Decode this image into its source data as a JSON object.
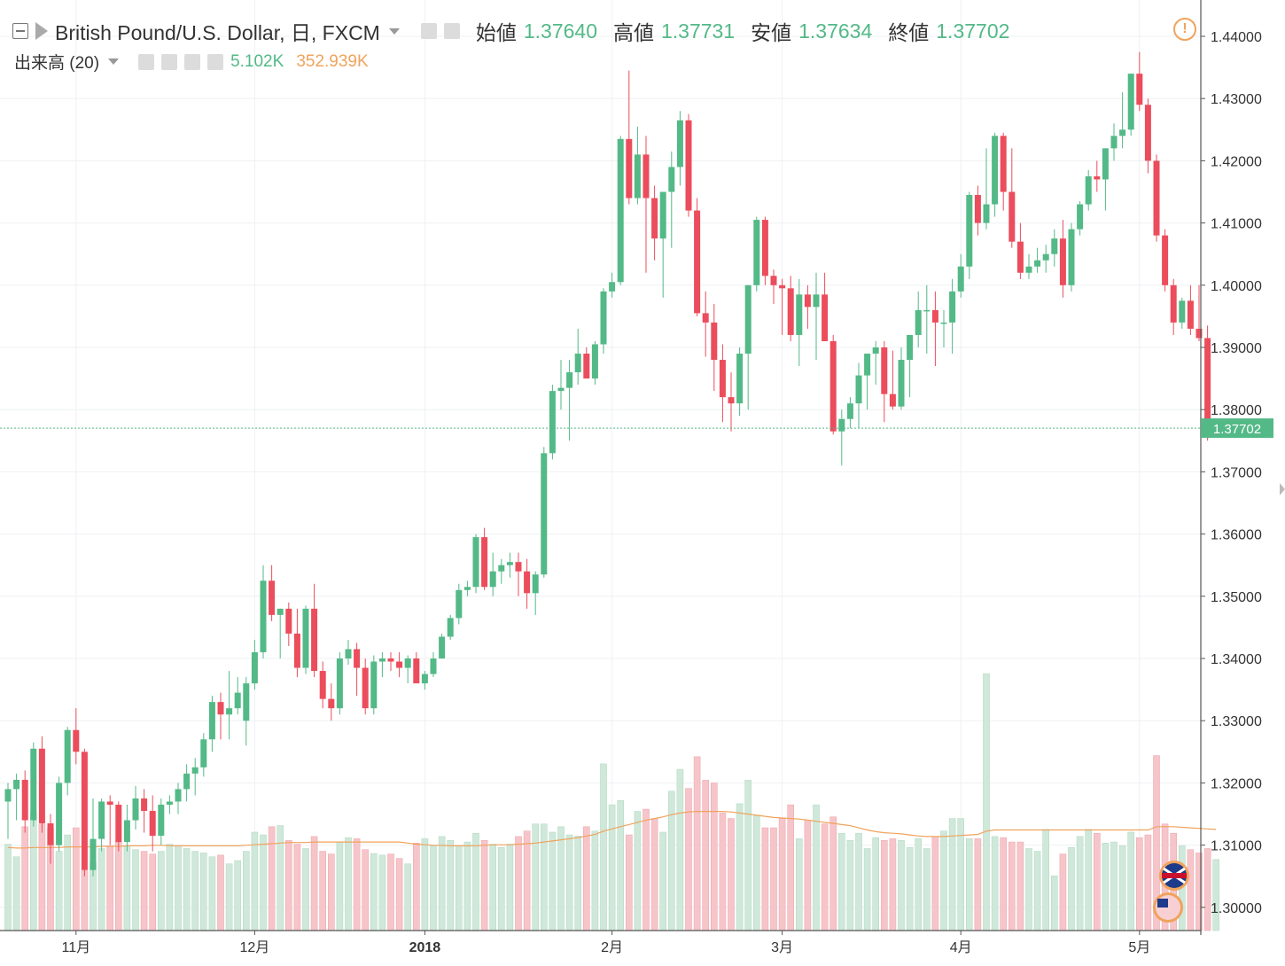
{
  "header": {
    "symbol": "British Pound/U.S. Dollar, 日, FXCM",
    "open_label": "始値",
    "open": "1.37640",
    "high_label": "高値",
    "high": "1.37731",
    "low_label": "安値",
    "low": "1.37634",
    "close_label": "終値",
    "close": "1.37702",
    "volume_label": "出来高 (20)",
    "volume_value": "5.102K",
    "volume_ma": "352.939K"
  },
  "last_price_label": "1.37702",
  "colors": {
    "up": "#53b987",
    "down": "#eb4d5c",
    "vol_up": "#cfe8da",
    "vol_down": "#f6c5ca",
    "ma": "#f0a35c"
  },
  "chart_data": {
    "type": "candlestick",
    "y_axis": {
      "ticks": [
        "1.30000",
        "1.31000",
        "1.32000",
        "1.33000",
        "1.34000",
        "1.35000",
        "1.36000",
        "1.37000",
        "1.38000",
        "1.39000",
        "1.40000",
        "1.41000",
        "1.42000",
        "1.43000",
        "1.44000"
      ],
      "range": [
        1.2975,
        1.445
      ]
    },
    "x_axis": {
      "labels": [
        "11月",
        "12月",
        "2018",
        "2月",
        "3月",
        "4月",
        "5月"
      ],
      "label_index": [
        8,
        29,
        49,
        71,
        91,
        112,
        133
      ]
    },
    "last_price": 1.37702,
    "candles": [
      [
        1.317,
        1.32,
        1.311,
        1.319
      ],
      [
        1.319,
        1.3215,
        1.314,
        1.3205
      ],
      [
        1.3205,
        1.322,
        1.312,
        1.314
      ],
      [
        1.314,
        1.3265,
        1.313,
        1.3255
      ],
      [
        1.3255,
        1.3275,
        1.312,
        1.3135
      ],
      [
        1.3135,
        1.315,
        1.307,
        1.31
      ],
      [
        1.31,
        1.321,
        1.309,
        1.32
      ],
      [
        1.32,
        1.329,
        1.318,
        1.3285
      ],
      [
        1.3285,
        1.332,
        1.323,
        1.325
      ],
      [
        1.325,
        1.3255,
        1.305,
        1.306
      ],
      [
        1.306,
        1.3175,
        1.305,
        1.311
      ],
      [
        1.311,
        1.3175,
        1.309,
        1.317
      ],
      [
        1.317,
        1.318,
        1.31,
        1.3165
      ],
      [
        1.3165,
        1.317,
        1.309,
        1.3105
      ],
      [
        1.3105,
        1.3165,
        1.309,
        1.314
      ],
      [
        1.314,
        1.3195,
        1.3125,
        1.3175
      ],
      [
        1.3175,
        1.319,
        1.312,
        1.3155
      ],
      [
        1.3155,
        1.318,
        1.309,
        1.3115
      ],
      [
        1.3115,
        1.3175,
        1.31,
        1.3165
      ],
      [
        1.3165,
        1.318,
        1.315,
        1.317
      ],
      [
        1.317,
        1.32,
        1.315,
        1.319
      ],
      [
        1.319,
        1.323,
        1.317,
        1.3215
      ],
      [
        1.3215,
        1.324,
        1.318,
        1.3225
      ],
      [
        1.3225,
        1.328,
        1.321,
        1.327
      ],
      [
        1.327,
        1.334,
        1.325,
        1.333
      ],
      [
        1.333,
        1.3345,
        1.327,
        1.331
      ],
      [
        1.331,
        1.338,
        1.327,
        1.332
      ],
      [
        1.332,
        1.337,
        1.331,
        1.3345
      ],
      [
        1.33,
        1.337,
        1.326,
        1.336
      ],
      [
        1.336,
        1.343,
        1.335,
        1.341
      ],
      [
        1.341,
        1.355,
        1.34,
        1.3525
      ],
      [
        1.3525,
        1.355,
        1.346,
        1.347
      ],
      [
        1.347,
        1.348,
        1.34,
        1.348
      ],
      [
        1.348,
        1.349,
        1.342,
        1.344
      ],
      [
        1.344,
        1.348,
        1.337,
        1.3385
      ],
      [
        1.3385,
        1.3485,
        1.3375,
        1.348
      ],
      [
        1.348,
        1.352,
        1.337,
        1.338
      ],
      [
        1.338,
        1.3395,
        1.332,
        1.3335
      ],
      [
        1.3335,
        1.336,
        1.33,
        1.332
      ],
      [
        1.332,
        1.341,
        1.331,
        1.34
      ],
      [
        1.34,
        1.343,
        1.339,
        1.3415
      ],
      [
        1.3415,
        1.3425,
        1.334,
        1.3385
      ],
      [
        1.3385,
        1.34,
        1.331,
        1.332
      ],
      [
        1.332,
        1.3405,
        1.331,
        1.3395
      ],
      [
        1.3395,
        1.341,
        1.337,
        1.34
      ],
      [
        1.34,
        1.341,
        1.338,
        1.3395
      ],
      [
        1.3395,
        1.341,
        1.337,
        1.3385
      ],
      [
        1.3385,
        1.3405,
        1.336,
        1.34
      ],
      [
        1.34,
        1.341,
        1.337,
        1.336
      ],
      [
        1.336,
        1.338,
        1.335,
        1.3375
      ],
      [
        1.3375,
        1.341,
        1.337,
        1.34
      ],
      [
        1.34,
        1.344,
        1.34,
        1.3435
      ],
      [
        1.3435,
        1.347,
        1.343,
        1.3465
      ],
      [
        1.3465,
        1.352,
        1.3455,
        1.351
      ],
      [
        1.351,
        1.3525,
        1.35,
        1.3515
      ],
      [
        1.3515,
        1.36,
        1.3505,
        1.3595
      ],
      [
        1.3595,
        1.361,
        1.351,
        1.3515
      ],
      [
        1.3515,
        1.357,
        1.35,
        1.354
      ],
      [
        1.354,
        1.356,
        1.352,
        1.355
      ],
      [
        1.355,
        1.357,
        1.353,
        1.3555
      ],
      [
        1.3555,
        1.357,
        1.35,
        1.354
      ],
      [
        1.354,
        1.356,
        1.348,
        1.3505
      ],
      [
        1.3505,
        1.354,
        1.347,
        1.3535
      ],
      [
        1.3535,
        1.374,
        1.353,
        1.373
      ],
      [
        1.373,
        1.384,
        1.372,
        1.383
      ],
      [
        1.383,
        1.388,
        1.38,
        1.3835
      ],
      [
        1.3835,
        1.388,
        1.375,
        1.386
      ],
      [
        1.386,
        1.393,
        1.384,
        1.389
      ],
      [
        1.389,
        1.39,
        1.385,
        1.385
      ],
      [
        1.385,
        1.391,
        1.384,
        1.3905
      ],
      [
        1.3905,
        1.3995,
        1.389,
        1.399
      ],
      [
        1.399,
        1.402,
        1.398,
        1.4005
      ],
      [
        1.4005,
        1.424,
        1.4,
        1.4235
      ],
      [
        1.4235,
        1.4345,
        1.413,
        1.414
      ],
      [
        1.414,
        1.4255,
        1.413,
        1.421
      ],
      [
        1.421,
        1.424,
        1.402,
        1.414
      ],
      [
        1.414,
        1.416,
        1.404,
        1.4075
      ],
      [
        1.4075,
        1.415,
        1.398,
        1.415
      ],
      [
        1.415,
        1.4215,
        1.406,
        1.419
      ],
      [
        1.419,
        1.428,
        1.416,
        1.4265
      ],
      [
        1.4265,
        1.4275,
        1.411,
        1.412
      ],
      [
        1.412,
        1.414,
        1.395,
        1.3955
      ],
      [
        1.3955,
        1.399,
        1.3885,
        1.394
      ],
      [
        1.394,
        1.397,
        1.383,
        1.388
      ],
      [
        1.388,
        1.3905,
        1.378,
        1.382
      ],
      [
        1.382,
        1.386,
        1.3765,
        1.381
      ],
      [
        1.381,
        1.39,
        1.379,
        1.389
      ],
      [
        1.389,
        1.4,
        1.38,
        1.4
      ],
      [
        1.4,
        1.411,
        1.399,
        1.4105
      ],
      [
        1.4105,
        1.411,
        1.4,
        1.4015
      ],
      [
        1.4015,
        1.4025,
        1.397,
        1.4
      ],
      [
        1.4,
        1.401,
        1.392,
        1.3995
      ],
      [
        1.3995,
        1.4015,
        1.391,
        1.392
      ],
      [
        1.392,
        1.401,
        1.387,
        1.3985
      ],
      [
        1.3985,
        1.4,
        1.393,
        1.3965
      ],
      [
        1.3965,
        1.402,
        1.388,
        1.3985
      ],
      [
        1.3985,
        1.402,
        1.391,
        1.391
      ],
      [
        1.391,
        1.392,
        1.376,
        1.3765
      ],
      [
        1.3765,
        1.38,
        1.371,
        1.3785
      ],
      [
        1.3785,
        1.382,
        1.377,
        1.381
      ],
      [
        1.381,
        1.3875,
        1.377,
        1.3855
      ],
      [
        1.3855,
        1.389,
        1.38,
        1.389
      ],
      [
        1.389,
        1.391,
        1.384,
        1.39
      ],
      [
        1.39,
        1.391,
        1.378,
        1.3825
      ],
      [
        1.3825,
        1.3895,
        1.38,
        1.3805
      ],
      [
        1.3805,
        1.39,
        1.38,
        1.388
      ],
      [
        1.388,
        1.392,
        1.382,
        1.392
      ],
      [
        1.392,
        1.399,
        1.39,
        1.396
      ],
      [
        1.396,
        1.4,
        1.389,
        1.396
      ],
      [
        1.396,
        1.399,
        1.387,
        1.394
      ],
      [
        1.394,
        1.396,
        1.39,
        1.394
      ],
      [
        1.394,
        1.401,
        1.389,
        1.399
      ],
      [
        1.399,
        1.405,
        1.398,
        1.403
      ],
      [
        1.403,
        1.415,
        1.401,
        1.4145
      ],
      [
        1.4145,
        1.416,
        1.408,
        1.41
      ],
      [
        1.41,
        1.422,
        1.409,
        1.413
      ],
      [
        1.413,
        1.4245,
        1.411,
        1.424
      ],
      [
        1.424,
        1.4245,
        1.412,
        1.415
      ],
      [
        1.415,
        1.422,
        1.406,
        1.407
      ],
      [
        1.407,
        1.41,
        1.401,
        1.402
      ],
      [
        1.402,
        1.405,
        1.401,
        1.403
      ],
      [
        1.403,
        1.406,
        1.402,
        1.404
      ],
      [
        1.404,
        1.4065,
        1.402,
        1.405
      ],
      [
        1.405,
        1.409,
        1.403,
        1.4075
      ],
      [
        1.4075,
        1.4105,
        1.398,
        1.4
      ],
      [
        1.4,
        1.41,
        1.399,
        1.409
      ],
      [
        1.409,
        1.4135,
        1.408,
        1.413
      ],
      [
        1.413,
        1.4185,
        1.412,
        1.4175
      ],
      [
        1.4175,
        1.42,
        1.415,
        1.417
      ],
      [
        1.417,
        1.422,
        1.412,
        1.422
      ],
      [
        1.422,
        1.426,
        1.42,
        1.424
      ],
      [
        1.424,
        1.431,
        1.422,
        1.425
      ],
      [
        1.425,
        1.434,
        1.424,
        1.434
      ],
      [
        1.434,
        1.4375,
        1.428,
        1.429
      ],
      [
        1.429,
        1.43,
        1.418,
        1.42
      ],
      [
        1.42,
        1.421,
        1.407,
        1.408
      ],
      [
        1.408,
        1.409,
        1.399,
        1.4
      ],
      [
        1.4,
        1.401,
        1.392,
        1.394
      ],
      [
        1.394,
        1.398,
        1.393,
        1.3975
      ],
      [
        1.3975,
        1.4,
        1.392,
        1.393
      ],
      [
        1.393,
        1.4,
        1.391,
        1.3915
      ],
      [
        1.3915,
        1.3935,
        1.375,
        1.3765
      ],
      [
        1.3764,
        1.3773,
        1.3763,
        1.377
      ]
    ],
    "volume": [
      1.58,
      1.35,
      1.9,
      2.15,
      1.95,
      1.88,
      1.45,
      1.75,
      1.88,
      1.1,
      1.25,
      1.5,
      1.55,
      1.62,
      1.55,
      1.48,
      1.45,
      1.4,
      1.45,
      1.58,
      1.55,
      1.5,
      1.45,
      1.42,
      1.35,
      1.38,
      1.22,
      1.28,
      1.45,
      1.8,
      1.75,
      1.9,
      1.92,
      1.65,
      1.58,
      1.5,
      1.72,
      1.45,
      1.4,
      1.62,
      1.7,
      1.68,
      1.48,
      1.41,
      1.38,
      1.4,
      1.32,
      1.22,
      1.6,
      1.68,
      1.55,
      1.72,
      1.65,
      1.55,
      1.62,
      1.78,
      1.65,
      1.58,
      1.52,
      1.58,
      1.72,
      1.82,
      1.95,
      1.95,
      1.8,
      1.9,
      1.75,
      1.73,
      1.9,
      1.82,
      3.05,
      2.3,
      2.38,
      1.75,
      2.18,
      2.22,
      2.05,
      1.8,
      2.55,
      2.95,
      2.6,
      3.18,
      2.75,
      2.7,
      2.15,
      2.05,
      2.32,
      2.75,
      2.1,
      1.88,
      1.88,
      2.05,
      2.3,
      1.68,
      2.02,
      2.3,
      1.95,
      2.08,
      1.78,
      1.65,
      1.78,
      1.5,
      1.7,
      1.65,
      1.68,
      1.65,
      1.52,
      1.68,
      1.5,
      1.72,
      1.82,
      2.05,
      2.05,
      1.68,
      1.68,
      4.7,
      1.72,
      1.7,
      1.62,
      1.62,
      1.5,
      1.45,
      1.85,
      1.0,
      1.4,
      1.52,
      1.72,
      1.85,
      1.78,
      1.6,
      1.62,
      1.55,
      1.8,
      1.7,
      1.75,
      3.2,
      1.95,
      1.78,
      1.55,
      1.48,
      1.42,
      1.5,
      1.3
    ],
    "volume_ma": [
      1.52,
      1.51,
      1.51,
      1.52,
      1.52,
      1.52,
      1.52,
      1.53,
      1.53,
      1.53,
      1.53,
      1.54,
      1.54,
      1.54,
      1.55,
      1.55,
      1.55,
      1.56,
      1.56,
      1.55,
      1.55,
      1.55,
      1.55,
      1.55,
      1.55,
      1.55,
      1.55,
      1.55,
      1.56,
      1.57,
      1.58,
      1.59,
      1.6,
      1.61,
      1.61,
      1.61,
      1.62,
      1.62,
      1.62,
      1.62,
      1.62,
      1.62,
      1.62,
      1.62,
      1.62,
      1.62,
      1.62,
      1.6,
      1.58,
      1.57,
      1.56,
      1.56,
      1.55,
      1.55,
      1.55,
      1.55,
      1.56,
      1.57,
      1.57,
      1.57,
      1.58,
      1.59,
      1.6,
      1.62,
      1.64,
      1.66,
      1.68,
      1.7,
      1.73,
      1.76,
      1.82,
      1.86,
      1.9,
      1.94,
      1.98,
      2.02,
      2.05,
      2.08,
      2.12,
      2.15,
      2.17,
      2.18,
      2.18,
      2.18,
      2.18,
      2.17,
      2.15,
      2.13,
      2.11,
      2.09,
      2.07,
      2.06,
      2.05,
      2.04,
      2.02,
      2.0,
      1.98,
      1.96,
      1.94,
      1.92,
      1.88,
      1.84,
      1.81,
      1.79,
      1.78,
      1.77,
      1.75,
      1.73,
      1.72,
      1.72,
      1.72,
      1.73,
      1.74,
      1.75,
      1.76,
      1.82,
      1.84,
      1.84,
      1.84,
      1.84,
      1.84,
      1.84,
      1.84,
      1.84,
      1.84,
      1.84,
      1.84,
      1.84,
      1.84,
      1.84,
      1.84,
      1.84,
      1.84,
      1.84,
      1.84,
      1.9,
      1.9,
      1.9,
      1.89,
      1.88,
      1.87,
      1.86,
      1.85
    ]
  }
}
